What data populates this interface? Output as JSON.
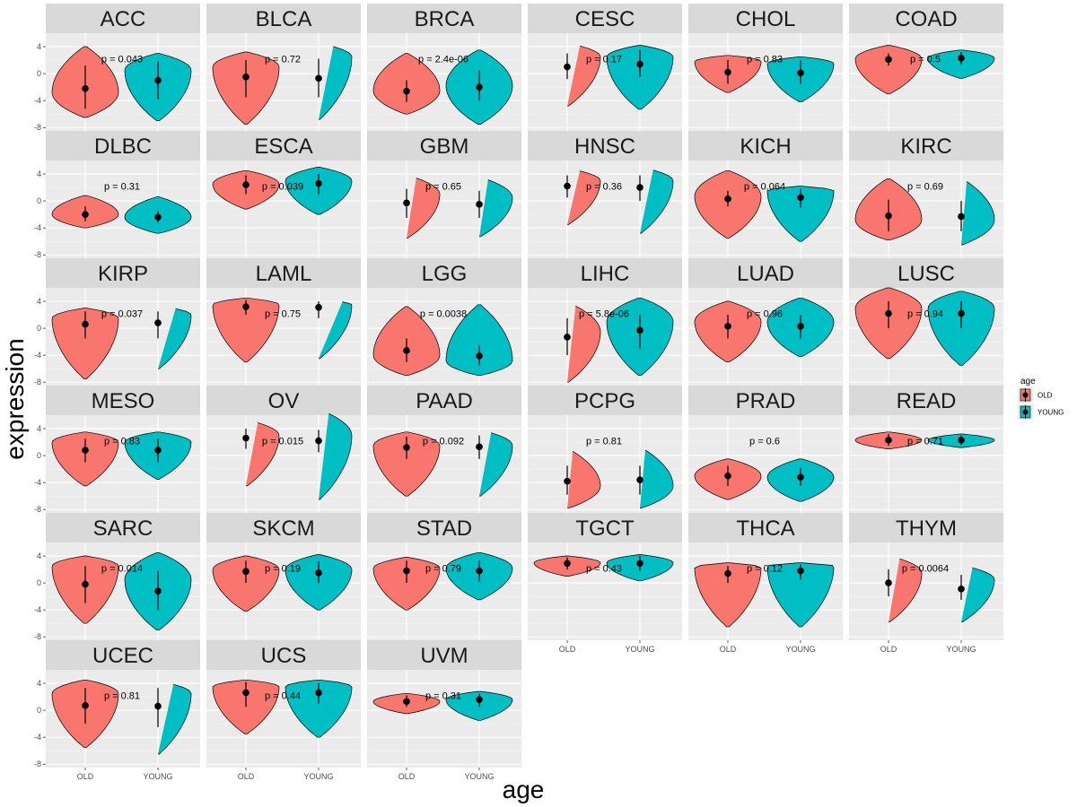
{
  "chart_data": {
    "type": "violin",
    "xlabel": "age",
    "ylabel": "expression",
    "ylim": [
      -8.5,
      6
    ],
    "yticks": [
      4,
      0,
      -4,
      -8
    ],
    "ytick_labels": [
      "4",
      "0",
      "-4",
      "-8"
    ],
    "categories": [
      "OLD",
      "YOUNG"
    ],
    "legend": {
      "title": "age",
      "position": "right",
      "entries": [
        {
          "label": "OLD",
          "color": "#F8766D"
        },
        {
          "label": "YOUNG",
          "color": "#00BFC4"
        }
      ]
    },
    "colors": {
      "OLD": "#F8766D",
      "YOUNG": "#00BFC4",
      "panel": "#EBEBEB",
      "strip": "#D9D9D9",
      "grid": "#FFFFFF"
    },
    "facets": [
      {
        "name": "ACC",
        "p": "p = 0.043",
        "old": {
          "median": -2.2,
          "lo": -5.2,
          "hi": 1.2,
          "min": -6.5,
          "max": 4.0,
          "peak": -2.8
        },
        "young": {
          "median": -1.0,
          "lo": -3.8,
          "hi": 1.8,
          "min": -7.0,
          "max": 3.0,
          "peak": 0.5
        }
      },
      {
        "name": "BLCA",
        "p": "p = 0.72",
        "old": {
          "median": -0.5,
          "lo": -3.5,
          "hi": 2.0,
          "min": -7.5,
          "max": 3.2,
          "peak": 1.0
        },
        "young": {
          "median": -0.7,
          "lo": -3.5,
          "hi": 2.2,
          "min": -6.8,
          "max": 4.5,
          "peak": 2.5
        }
      },
      {
        "name": "BRCA",
        "p": "p = 2.4e-06",
        "old": {
          "median": -2.6,
          "lo": -4.2,
          "hi": -1.0,
          "min": -6.0,
          "max": 3.0,
          "peak": -2.5
        },
        "young": {
          "median": -2.0,
          "lo": -4.0,
          "hi": 0.5,
          "min": -7.5,
          "max": 3.5,
          "peak": -1.8
        }
      },
      {
        "name": "CESC",
        "p": "p = 0.17",
        "old": {
          "median": 1.0,
          "lo": -0.8,
          "hi": 3.0,
          "min": -4.8,
          "max": 4.5,
          "peak": 2.5
        },
        "young": {
          "median": 1.4,
          "lo": -0.5,
          "hi": 3.5,
          "min": -5.3,
          "max": 4.2,
          "peak": 2.5
        }
      },
      {
        "name": "CHOL",
        "p": "p = 0.83",
        "old": {
          "median": 0.2,
          "lo": -1.5,
          "hi": 2.0,
          "min": -2.8,
          "max": 2.7,
          "peak": 1.8
        },
        "young": {
          "median": 0.1,
          "lo": -1.5,
          "hi": 2.0,
          "min": -4.2,
          "max": 2.5,
          "peak": 1.5
        }
      },
      {
        "name": "COAD",
        "p": "p = 0.5",
        "old": {
          "median": 2.1,
          "lo": 1.2,
          "hi": 3.0,
          "min": -3.0,
          "max": 4.2,
          "peak": 2.2
        },
        "young": {
          "median": 2.3,
          "lo": 1.4,
          "hi": 3.2,
          "min": -0.7,
          "max": 3.5,
          "peak": 2.3
        }
      },
      {
        "name": "DLBC",
        "p": "p = 0.31",
        "old": {
          "median": -2.0,
          "lo": -3.0,
          "hi": -0.8,
          "min": -4.0,
          "max": 0.8,
          "peak": -2.0
        },
        "young": {
          "median": -2.4,
          "lo": -3.2,
          "hi": -1.5,
          "min": -4.8,
          "max": 0.6,
          "peak": -2.4
        }
      },
      {
        "name": "ESCA",
        "p": "p = 0.039",
        "old": {
          "median": 2.4,
          "lo": 1.0,
          "hi": 3.8,
          "min": -1.2,
          "max": 4.5,
          "peak": 2.5
        },
        "young": {
          "median": 2.6,
          "lo": 1.0,
          "hi": 4.0,
          "min": -2.0,
          "max": 5.0,
          "peak": 3.0
        }
      },
      {
        "name": "GBM",
        "p": "p = 0.65",
        "old": {
          "median": -0.3,
          "lo": -2.5,
          "hi": 1.8,
          "min": -5.5,
          "max": 3.8,
          "peak": 1.0
        },
        "young": {
          "median": -0.5,
          "lo": -2.5,
          "hi": 1.5,
          "min": -5.3,
          "max": 3.5,
          "peak": 0.5
        }
      },
      {
        "name": "HNSC",
        "p": "p = 0.36",
        "old": {
          "median": 2.2,
          "lo": 0.5,
          "hi": 3.8,
          "min": -3.5,
          "max": 4.8,
          "peak": 3.0
        },
        "young": {
          "median": 2.0,
          "lo": 0.0,
          "hi": 3.8,
          "min": -4.8,
          "max": 5.0,
          "peak": 3.0
        }
      },
      {
        "name": "KICH",
        "p": "p = 0.064",
        "old": {
          "median": 0.3,
          "lo": -0.8,
          "hi": 1.5,
          "min": -5.5,
          "max": 4.5,
          "peak": 0.7
        },
        "young": {
          "median": 0.5,
          "lo": -1.0,
          "hi": 1.8,
          "min": -6.0,
          "max": 2.2,
          "peak": 1.5
        }
      },
      {
        "name": "KIRC",
        "p": "p = 0.69",
        "old": {
          "median": -2.2,
          "lo": -4.5,
          "hi": 0.2,
          "min": -5.8,
          "max": 3.3,
          "peak": -2.8
        },
        "young": {
          "median": -2.3,
          "lo": -4.5,
          "hi": 0.0,
          "min": -6.5,
          "max": 3.3,
          "peak": -2.8
        }
      },
      {
        "name": "KIRP",
        "p": "p = 0.037",
        "old": {
          "median": 0.6,
          "lo": -1.5,
          "hi": 2.5,
          "min": -7.5,
          "max": 3.0,
          "peak": 1.5
        },
        "young": {
          "median": 0.8,
          "lo": -1.5,
          "hi": 2.5,
          "min": -6.0,
          "max": 3.3,
          "peak": 2.0
        }
      },
      {
        "name": "LAML",
        "p": "p = 0.75",
        "old": {
          "median": 3.2,
          "lo": 2.0,
          "hi": 4.2,
          "min": -5.0,
          "max": 4.5,
          "peak": 3.5
        },
        "young": {
          "median": 3.1,
          "lo": 1.5,
          "hi": 4.0,
          "min": -4.5,
          "max": 4.3,
          "peak": 3.5
        }
      },
      {
        "name": "LGG",
        "p": "p = 0.0038",
        "old": {
          "median": -3.3,
          "lo": -5.0,
          "hi": -1.5,
          "min": -7.0,
          "max": 3.2,
          "peak": -4.0
        },
        "young": {
          "median": -4.1,
          "lo": -5.5,
          "hi": -2.5,
          "min": -7.0,
          "max": 3.5,
          "peak": -4.8
        }
      },
      {
        "name": "LIHC",
        "p": "p = 5.8e-06",
        "old": {
          "median": -1.3,
          "lo": -4.0,
          "hi": 1.5,
          "min": -8.0,
          "max": 3.8,
          "peak": -0.5
        },
        "young": {
          "median": -0.3,
          "lo": -3.0,
          "hi": 2.0,
          "min": -7.0,
          "max": 4.5,
          "peak": 1.0
        }
      },
      {
        "name": "LUAD",
        "p": "p = 0.96",
        "old": {
          "median": 0.3,
          "lo": -1.5,
          "hi": 2.0,
          "min": -5.0,
          "max": 4.0,
          "peak": 1.0
        },
        "young": {
          "median": 0.3,
          "lo": -1.5,
          "hi": 2.0,
          "min": -4.2,
          "max": 4.5,
          "peak": 1.0
        }
      },
      {
        "name": "LUSC",
        "p": "p = 0.94",
        "old": {
          "median": 2.2,
          "lo": 0.0,
          "hi": 4.0,
          "min": -4.5,
          "max": 6.0,
          "peak": 3.0
        },
        "young": {
          "median": 2.2,
          "lo": 0.0,
          "hi": 4.0,
          "min": -5.5,
          "max": 5.5,
          "peak": 3.0
        }
      },
      {
        "name": "MESO",
        "p": "p = 0.83",
        "old": {
          "median": 0.8,
          "lo": -1.0,
          "hi": 2.5,
          "min": -4.5,
          "max": 3.5,
          "peak": 2.0
        },
        "young": {
          "median": 0.8,
          "lo": -1.0,
          "hi": 2.5,
          "min": -3.5,
          "max": 3.5,
          "peak": 2.0
        }
      },
      {
        "name": "OV",
        "p": "p = 0.015",
        "old": {
          "median": 2.6,
          "lo": 1.0,
          "hi": 4.0,
          "min": -4.5,
          "max": 5.3,
          "peak": 3.0
        },
        "young": {
          "median": 2.2,
          "lo": 0.5,
          "hi": 3.8,
          "min": -6.5,
          "max": 6.8,
          "peak": 3.0
        }
      },
      {
        "name": "PAAD",
        "p": "p = 0.092",
        "old": {
          "median": 1.2,
          "lo": -0.5,
          "hi": 2.8,
          "min": -6.0,
          "max": 3.5,
          "peak": 1.5
        },
        "young": {
          "median": 1.3,
          "lo": -0.5,
          "hi": 3.0,
          "min": -6.0,
          "max": 3.8,
          "peak": 1.5
        }
      },
      {
        "name": "PCPG",
        "p": "p = 0.81",
        "old": {
          "median": -3.8,
          "lo": -5.8,
          "hi": -1.5,
          "min": -7.8,
          "max": 1.0,
          "peak": -4.5
        },
        "young": {
          "median": -3.6,
          "lo": -5.8,
          "hi": -1.5,
          "min": -7.8,
          "max": 1.2,
          "peak": -4.5
        }
      },
      {
        "name": "PRAD",
        "p": "p = 0.6",
        "old": {
          "median": -3.0,
          "lo": -4.5,
          "hi": -1.5,
          "min": -6.5,
          "max": -0.5,
          "peak": -3.0
        },
        "young": {
          "median": -3.2,
          "lo": -4.5,
          "hi": -1.8,
          "min": -6.8,
          "max": -0.5,
          "peak": -3.2
        }
      },
      {
        "name": "READ",
        "p": "p = 0.71",
        "old": {
          "median": 2.3,
          "lo": 1.5,
          "hi": 3.2,
          "min": 1.0,
          "max": 3.5,
          "peak": 2.3
        },
        "young": {
          "median": 2.3,
          "lo": 1.6,
          "hi": 3.0,
          "min": 1.2,
          "max": 3.2,
          "peak": 2.3
        }
      },
      {
        "name": "SARC",
        "p": "p = 0.014",
        "old": {
          "median": -0.2,
          "lo": -3.0,
          "hi": 2.5,
          "min": -6.0,
          "max": 4.0,
          "peak": 2.5
        },
        "young": {
          "median": -1.2,
          "lo": -4.0,
          "hi": 1.8,
          "min": -7.0,
          "max": 4.5,
          "peak": 0.5
        }
      },
      {
        "name": "SKCM",
        "p": "p = 0.19",
        "old": {
          "median": 1.7,
          "lo": 0.0,
          "hi": 3.3,
          "min": -4.2,
          "max": 4.0,
          "peak": 2.0
        },
        "young": {
          "median": 1.5,
          "lo": 0.0,
          "hi": 3.2,
          "min": -4.0,
          "max": 4.2,
          "peak": 2.0
        }
      },
      {
        "name": "STAD",
        "p": "p = 0.79",
        "old": {
          "median": 1.8,
          "lo": 0.0,
          "hi": 3.3,
          "min": -4.0,
          "max": 3.8,
          "peak": 2.2
        },
        "young": {
          "median": 1.8,
          "lo": 0.2,
          "hi": 3.3,
          "min": -2.5,
          "max": 4.5,
          "peak": 2.2
        }
      },
      {
        "name": "TGCT",
        "p": "p = 0.43",
        "old": {
          "median": 2.9,
          "lo": 2.0,
          "hi": 3.8,
          "min": 1.0,
          "max": 4.0,
          "peak": 3.0
        },
        "young": {
          "median": 2.9,
          "lo": 1.8,
          "hi": 4.0,
          "min": 0.3,
          "max": 4.2,
          "peak": 3.0
        }
      },
      {
        "name": "THCA",
        "p": "p = 0.12",
        "old": {
          "median": 1.4,
          "lo": 0.0,
          "hi": 2.5,
          "min": -6.5,
          "max": 3.0,
          "peak": 2.3
        },
        "young": {
          "median": 1.8,
          "lo": 0.5,
          "hi": 2.8,
          "min": -6.5,
          "max": 3.0,
          "peak": 2.5
        }
      },
      {
        "name": "THYM",
        "p": "p = 0.0064",
        "old": {
          "median": 0.0,
          "lo": -2.0,
          "hi": 2.0,
          "min": -5.8,
          "max": 4.0,
          "peak": 1.5
        },
        "young": {
          "median": -0.9,
          "lo": -2.5,
          "hi": 1.2,
          "min": -5.8,
          "max": 2.6,
          "peak": 0.5
        }
      },
      {
        "name": "UCEC",
        "p": "p = 0.81",
        "old": {
          "median": 0.7,
          "lo": -2.0,
          "hi": 3.3,
          "min": -5.5,
          "max": 4.5,
          "peak": 2.5
        },
        "young": {
          "median": 0.6,
          "lo": -2.5,
          "hi": 3.3,
          "min": -6.5,
          "max": 4.3,
          "peak": 2.5
        }
      },
      {
        "name": "UCS",
        "p": "p = 0.44",
        "old": {
          "median": 2.6,
          "lo": 0.5,
          "hi": 4.2,
          "min": -3.5,
          "max": 4.5,
          "peak": 3.5
        },
        "young": {
          "median": 2.6,
          "lo": 1.0,
          "hi": 4.0,
          "min": -4.0,
          "max": 4.5,
          "peak": 3.5
        }
      },
      {
        "name": "UVM",
        "p": "p = 0.31",
        "old": {
          "median": 1.3,
          "lo": 0.5,
          "hi": 2.2,
          "min": -0.5,
          "max": 2.5,
          "peak": 1.3
        },
        "young": {
          "median": 1.6,
          "lo": 0.5,
          "hi": 2.5,
          "min": -1.5,
          "max": 2.8,
          "peak": 1.6
        }
      }
    ]
  }
}
